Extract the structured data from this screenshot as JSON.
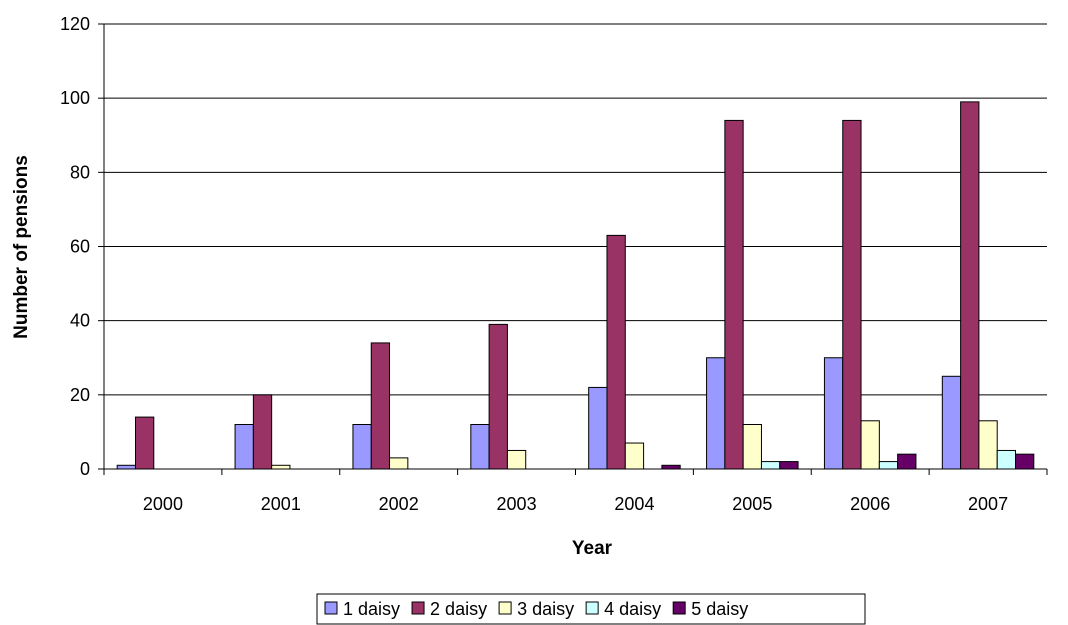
{
  "chart_data": {
    "type": "bar",
    "title": "",
    "xlabel": "Year",
    "ylabel": "Number of pensions",
    "ylim": [
      0,
      120
    ],
    "yticks": [
      0,
      20,
      40,
      60,
      80,
      100,
      120
    ],
    "grid": true,
    "legend_position": "bottom",
    "categories": [
      "2000",
      "2001",
      "2002",
      "2003",
      "2004",
      "2005",
      "2006",
      "2007"
    ],
    "series": [
      {
        "name": "1 daisy",
        "color": "#9999ff",
        "values": [
          1,
          12,
          12,
          12,
          22,
          30,
          30,
          25
        ]
      },
      {
        "name": "2 daisy",
        "color": "#993366",
        "values": [
          14,
          20,
          34,
          39,
          63,
          94,
          94,
          99
        ]
      },
      {
        "name": "3 daisy",
        "color": "#ffffcc",
        "values": [
          0,
          1,
          3,
          5,
          7,
          12,
          13,
          13
        ]
      },
      {
        "name": "4 daisy",
        "color": "#ccffff",
        "values": [
          0,
          0,
          0,
          0,
          0,
          2,
          2,
          5
        ]
      },
      {
        "name": "5 daisy",
        "color": "#660066",
        "values": [
          0,
          0,
          0,
          0,
          1,
          2,
          4,
          4
        ]
      }
    ]
  }
}
